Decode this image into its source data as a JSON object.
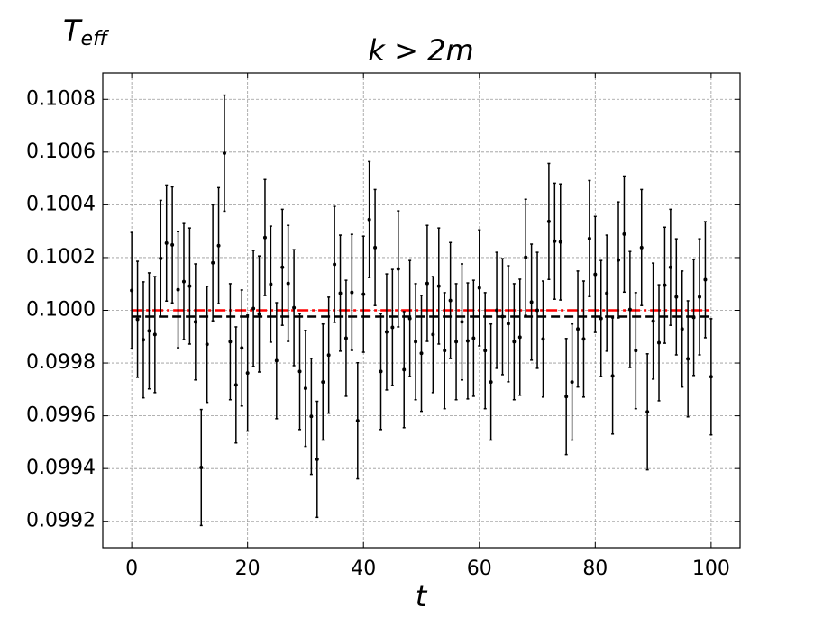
{
  "chart_data": {
    "type": "errorbar",
    "title": "k > 2m",
    "ylabel": "T",
    "ylabel_sub": "eff",
    "xlabel": "t",
    "x": [
      0,
      1,
      2,
      3,
      4,
      5,
      6,
      7,
      8,
      9,
      10,
      11,
      12,
      13,
      14,
      15,
      16,
      17,
      18,
      19,
      20,
      21,
      22,
      23,
      24,
      25,
      26,
      27,
      28,
      29,
      30,
      31,
      32,
      33,
      34,
      35,
      36,
      37,
      38,
      39,
      40,
      41,
      42,
      43,
      44,
      45,
      46,
      47,
      48,
      49,
      50,
      51,
      52,
      53,
      54,
      55,
      56,
      57,
      58,
      59,
      60,
      61,
      62,
      63,
      64,
      65,
      66,
      67,
      68,
      69,
      70,
      71,
      72,
      73,
      74,
      75,
      76,
      77,
      78,
      79,
      80,
      81,
      82,
      83,
      84,
      85,
      86,
      87,
      88,
      89,
      90,
      91,
      92,
      93,
      94,
      95,
      96,
      97,
      98,
      99,
      100
    ],
    "series": [
      {
        "color": "#000000",
        "error": 0.00022,
        "values": [
          0.100075,
          0.099966,
          0.099888,
          0.099922,
          0.099908,
          0.100197,
          0.100255,
          0.100248,
          0.100078,
          0.100109,
          0.100092,
          0.099956,
          0.099404,
          0.099871,
          0.10018,
          0.100245,
          0.100596,
          0.099881,
          0.099717,
          0.099857,
          0.099762,
          0.100007,
          0.099986,
          0.100276,
          0.100099,
          0.099809,
          0.100163,
          0.100102,
          0.10001,
          0.099768,
          0.099704,
          0.099598,
          0.099435,
          0.099728,
          0.09983,
          0.100174,
          0.100065,
          0.099894,
          0.100068,
          0.099581,
          0.100061,
          0.100344,
          0.100238,
          0.099768,
          0.099918,
          0.099935,
          0.100157,
          0.099775,
          0.099969,
          0.099881,
          0.099837,
          0.100102,
          0.099908,
          0.100092,
          0.099847,
          0.100037,
          0.099881,
          0.099956,
          0.099884,
          0.099894,
          0.100085,
          0.099847,
          0.099728,
          0.1,
          0.099976,
          0.099949,
          0.099881,
          0.099898,
          0.100201,
          0.100031,
          0.1,
          0.099891,
          0.100337,
          0.100262,
          0.100259,
          0.099673,
          0.099728,
          0.099929,
          0.099891,
          0.100272,
          0.100136,
          0.099969,
          0.100065,
          0.099751,
          0.100191,
          0.100289,
          0.100003,
          0.099847,
          0.100238,
          0.099615,
          0.099959,
          0.099877,
          0.100095,
          0.100163,
          0.100051,
          0.099929,
          0.099816,
          0.099973,
          0.100051,
          0.100116,
          0.099748
        ]
      }
    ],
    "hlines": [
      {
        "y": 0.1,
        "color": "#ff0000",
        "style": "dashdot"
      },
      {
        "y": 0.099976,
        "color": "#000000",
        "style": "dashed"
      }
    ],
    "xlim": [
      -5,
      105
    ],
    "ylim": [
      0.0991,
      0.1009
    ],
    "xticks": [
      0,
      20,
      40,
      60,
      80,
      100
    ],
    "yticks": [
      0.0992,
      0.0994,
      0.0996,
      0.0998,
      {
        "value": 0.1,
        "label": "0.1000"
      },
      0.1002,
      0.1004,
      0.1006,
      0.1008
    ],
    "grid": true
  }
}
